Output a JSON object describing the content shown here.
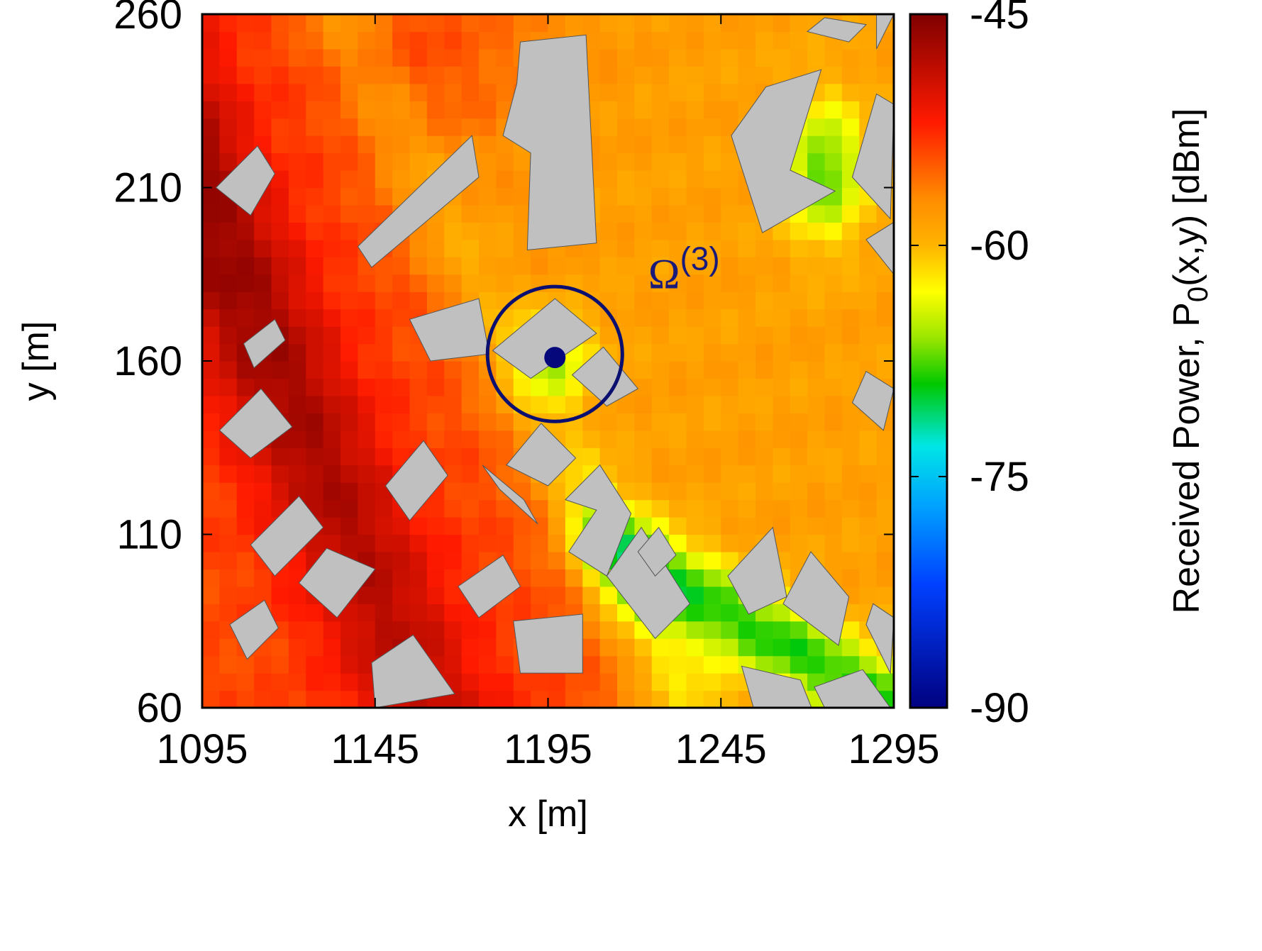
{
  "chart_data": {
    "type": "heatmap",
    "title": "",
    "xlabel": "x [m]",
    "ylabel": "y [m]",
    "colorbar": {
      "label_main": "Received Power, P",
      "label_sub": "0",
      "label_rest": "(x,y) [dBm]",
      "min": -90,
      "max": -45,
      "ticks": [
        "-45",
        "-60",
        "-75",
        "-90"
      ],
      "tick_values": [
        -45,
        -60,
        -75,
        -90
      ],
      "colormap": "jet-like",
      "stops": [
        {
          "v": -45,
          "color": "#7f0000"
        },
        {
          "v": -52,
          "color": "#ff1a00"
        },
        {
          "v": -57,
          "color": "#ff8c00"
        },
        {
          "v": -60,
          "color": "#ffb400"
        },
        {
          "v": -63,
          "color": "#ffff00"
        },
        {
          "v": -66,
          "color": "#9be600"
        },
        {
          "v": -69,
          "color": "#00c800"
        },
        {
          "v": -73,
          "color": "#00e6e6"
        },
        {
          "v": -77,
          "color": "#00a0ff"
        },
        {
          "v": -82,
          "color": "#0040ff"
        },
        {
          "v": -90,
          "color": "#000080"
        }
      ]
    },
    "x_ticks": [
      "1095",
      "1145",
      "1195",
      "1245",
      "1295"
    ],
    "x_tick_values": [
      1095,
      1145,
      1195,
      1245,
      1295
    ],
    "y_ticks": [
      "60",
      "110",
      "160",
      "210",
      "260"
    ],
    "y_tick_values": [
      60,
      110,
      160,
      210,
      260
    ],
    "xlim": [
      1095,
      1295
    ],
    "ylim": [
      60,
      260
    ],
    "grid_step_m": 5,
    "field_model": {
      "description_values": "approximate received-power field in dBm",
      "bands": [
        {
          "x0": 1150,
          "y0": 260,
          "x1": 1235,
          "y1": 60
        },
        {
          "x0": 1120,
          "y0": 260,
          "x1": 1200,
          "y1": 60
        }
      ]
    },
    "buildings_color": "#c0c0c0",
    "buildings": [
      [
        [
          1099,
          210
        ],
        [
          1111,
          222
        ],
        [
          1116,
          214
        ],
        [
          1109,
          202
        ]
      ],
      [
        [
          1140,
          193
        ],
        [
          1173,
          225
        ],
        [
          1175,
          213
        ],
        [
          1144,
          187
        ]
      ],
      [
        [
          1187,
          252
        ],
        [
          1206,
          254
        ],
        [
          1209,
          194
        ],
        [
          1189,
          192
        ],
        [
          1190,
          220
        ],
        [
          1182,
          225
        ],
        [
          1186,
          240
        ]
      ],
      [
        [
          1258,
          239
        ],
        [
          1274,
          244
        ],
        [
          1265,
          215
        ],
        [
          1278,
          209
        ],
        [
          1257,
          197
        ],
        [
          1248,
          225
        ],
        [
          1253,
          232
        ]
      ],
      [
        [
          1283,
          213
        ],
        [
          1294,
          201
        ],
        [
          1295,
          234
        ],
        [
          1290,
          237
        ]
      ],
      [
        [
          1290,
          250
        ],
        [
          1295,
          260
        ],
        [
          1290,
          260
        ]
      ],
      [
        [
          1275,
          259
        ],
        [
          1287,
          257
        ],
        [
          1282,
          252
        ],
        [
          1270,
          255
        ]
      ],
      [
        [
          1155,
          172
        ],
        [
          1175,
          178
        ],
        [
          1178,
          162
        ],
        [
          1161,
          160
        ]
      ],
      [
        [
          1179,
          163
        ],
        [
          1197,
          178
        ],
        [
          1209,
          168
        ],
        [
          1190,
          155
        ]
      ],
      [
        [
          1107,
          165
        ],
        [
          1116,
          172
        ],
        [
          1119,
          166
        ],
        [
          1110,
          158
        ]
      ],
      [
        [
          1202,
          156
        ],
        [
          1212,
          147
        ],
        [
          1221,
          152
        ],
        [
          1211,
          164
        ]
      ],
      [
        [
          1100,
          140
        ],
        [
          1112,
          152
        ],
        [
          1121,
          141
        ],
        [
          1109,
          132
        ]
      ],
      [
        [
          1148,
          124
        ],
        [
          1159,
          137
        ],
        [
          1166,
          127
        ],
        [
          1155,
          114
        ]
      ],
      [
        [
          1183,
          130
        ],
        [
          1193,
          142
        ],
        [
          1203,
          132
        ],
        [
          1195,
          124
        ]
      ],
      [
        [
          1176,
          130
        ],
        [
          1188,
          120
        ],
        [
          1192,
          113
        ],
        [
          1181,
          123
        ]
      ],
      [
        [
          1200,
          120
        ],
        [
          1210,
          130
        ],
        [
          1219,
          116
        ],
        [
          1212,
          98
        ],
        [
          1201,
          105
        ],
        [
          1209,
          117
        ]
      ],
      [
        [
          1109,
          107
        ],
        [
          1123,
          121
        ],
        [
          1130,
          112
        ],
        [
          1116,
          98
        ]
      ],
      [
        [
          1123,
          96
        ],
        [
          1131,
          106
        ],
        [
          1145,
          100
        ],
        [
          1134,
          86
        ]
      ],
      [
        [
          1169,
          95
        ],
        [
          1182,
          104
        ],
        [
          1187,
          95
        ],
        [
          1175,
          86
        ]
      ],
      [
        [
          1185,
          85
        ],
        [
          1205,
          87
        ],
        [
          1205,
          70
        ],
        [
          1187,
          70
        ]
      ],
      [
        [
          1103,
          84
        ],
        [
          1113,
          91
        ],
        [
          1117,
          83
        ],
        [
          1108,
          74
        ]
      ],
      [
        [
          1144,
          73
        ],
        [
          1156,
          81
        ],
        [
          1168,
          64
        ],
        [
          1145,
          60
        ]
      ],
      [
        [
          1212,
          98
        ],
        [
          1222,
          112
        ],
        [
          1236,
          90
        ],
        [
          1226,
          80
        ]
      ],
      [
        [
          1221,
          105
        ],
        [
          1227,
          112
        ],
        [
          1232,
          104
        ],
        [
          1226,
          98
        ]
      ],
      [
        [
          1247,
          98
        ],
        [
          1260,
          112
        ],
        [
          1264,
          92
        ],
        [
          1253,
          87
        ]
      ],
      [
        [
          1263,
          90
        ],
        [
          1271,
          105
        ],
        [
          1282,
          92
        ],
        [
          1279,
          78
        ]
      ],
      [
        [
          1251,
          72
        ],
        [
          1268,
          68
        ],
        [
          1272,
          58
        ],
        [
          1255,
          58
        ]
      ],
      [
        [
          1287,
          84
        ],
        [
          1294,
          70
        ],
        [
          1295,
          86
        ],
        [
          1289,
          90
        ]
      ],
      [
        [
          1283,
          148
        ],
        [
          1292,
          140
        ],
        [
          1295,
          152
        ],
        [
          1287,
          157
        ]
      ],
      [
        [
          1287,
          195
        ],
        [
          1295,
          185
        ],
        [
          1295,
          200
        ]
      ],
      [
        [
          1272,
          66
        ],
        [
          1286,
          71
        ],
        [
          1294,
          60
        ],
        [
          1275,
          60
        ]
      ]
    ],
    "circle": {
      "cx": 1197,
      "cy": 162,
      "r_m": 19.5,
      "color": "#0b1070"
    },
    "transmitter": {
      "x": 1197,
      "y": 161,
      "color": "#05087a"
    },
    "annotation": {
      "text": "Ω",
      "superscript": "(3)",
      "x": 1224,
      "y": 181,
      "color": "#1a1a7a"
    }
  }
}
